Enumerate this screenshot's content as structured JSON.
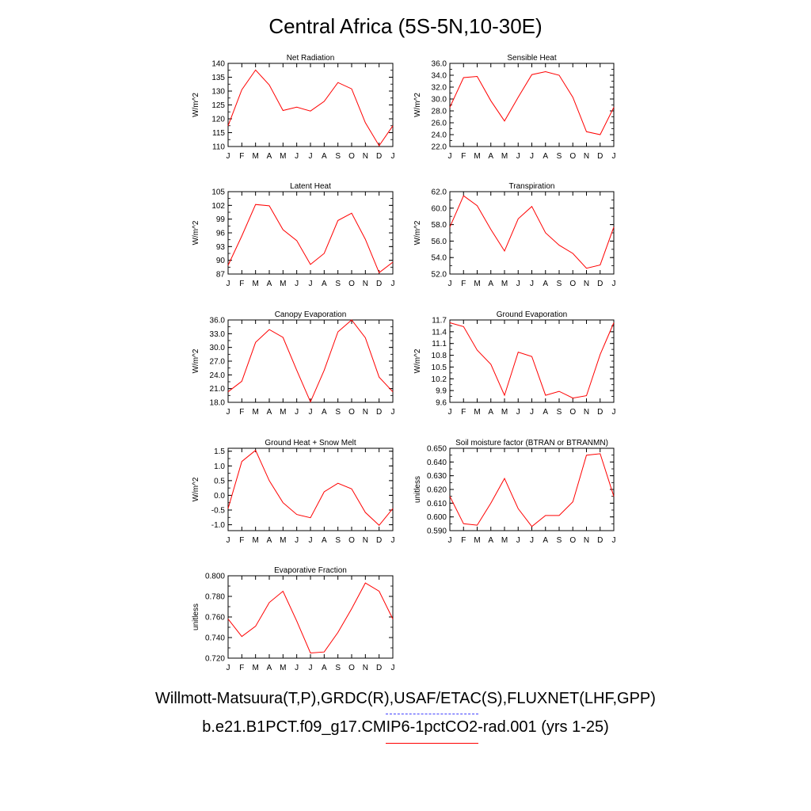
{
  "title": "Central Africa (5S-5N,10-30E)",
  "legend": {
    "observations": "Willmott-Matsuura(T,P),GRDC(R),USAF/ETAC(S),FLUXNET(LHF,GPP)",
    "model": "b.e21.B1PCT.f09_g17.CMIP6-1pctCO2-rad.001 (yrs 1-25)",
    "observations_color": "#4040ff",
    "model_color": "#ff0000"
  },
  "chart_data": [
    {
      "type": "line",
      "title": "Net Radiation",
      "ylabel": "W/m^2",
      "x": [
        "J",
        "F",
        "M",
        "A",
        "M",
        "J",
        "J",
        "A",
        "S",
        "O",
        "N",
        "D",
        "J"
      ],
      "ylim": [
        110,
        140
      ],
      "yticks": [
        "110",
        "115",
        "120",
        "125",
        "130",
        "135",
        "140"
      ],
      "series": [
        {
          "values": [
            117.5,
            130.5,
            137.6,
            132.2,
            123.0,
            124.2,
            122.8,
            126.3,
            133.1,
            130.8,
            118.6,
            110.3,
            117.5
          ],
          "color": "#ff0000"
        }
      ]
    },
    {
      "type": "line",
      "title": "Sensible Heat",
      "ylabel": "W/m^2",
      "x": [
        "J",
        "F",
        "M",
        "A",
        "M",
        "J",
        "J",
        "A",
        "S",
        "O",
        "N",
        "D",
        "J"
      ],
      "ylim": [
        22.0,
        36.0
      ],
      "yticks": [
        "22.0",
        "24.0",
        "26.0",
        "28.0",
        "30.0",
        "32.0",
        "34.0",
        "36.0"
      ],
      "series": [
        {
          "values": [
            28.6,
            33.6,
            33.8,
            29.7,
            26.3,
            30.3,
            34.1,
            34.6,
            34.0,
            30.3,
            24.5,
            24.0,
            28.6
          ],
          "color": "#ff0000"
        }
      ]
    },
    {
      "type": "line",
      "title": "Latent Heat",
      "ylabel": "W/m^2",
      "x": [
        "J",
        "F",
        "M",
        "A",
        "M",
        "J",
        "J",
        "A",
        "S",
        "O",
        "N",
        "D",
        "J"
      ],
      "ylim": [
        87,
        105
      ],
      "yticks": [
        "87",
        "90",
        "93",
        "96",
        "99",
        "102",
        "105"
      ],
      "series": [
        {
          "values": [
            88.9,
            95.3,
            102.2,
            101.9,
            96.7,
            94.3,
            89.1,
            91.5,
            98.7,
            100.3,
            94.6,
            87.3,
            89.6
          ],
          "color": "#ff0000"
        }
      ]
    },
    {
      "type": "line",
      "title": "Transpiration",
      "ylabel": "W/m^2",
      "x": [
        "J",
        "F",
        "M",
        "A",
        "M",
        "J",
        "J",
        "A",
        "S",
        "O",
        "N",
        "D",
        "J"
      ],
      "ylim": [
        52.0,
        62.0
      ],
      "yticks": [
        "52.0",
        "54.0",
        "56.0",
        "58.0",
        "60.0",
        "62.0"
      ],
      "series": [
        {
          "values": [
            57.7,
            61.5,
            60.3,
            57.4,
            54.8,
            58.7,
            60.2,
            57.0,
            55.5,
            54.5,
            52.7,
            53.1,
            57.7
          ],
          "color": "#ff0000"
        }
      ]
    },
    {
      "type": "line",
      "title": "Canopy Evaporation",
      "ylabel": "W/m^2",
      "x": [
        "J",
        "F",
        "M",
        "A",
        "M",
        "J",
        "J",
        "A",
        "S",
        "O",
        "N",
        "D",
        "J"
      ],
      "ylim": [
        18.0,
        36.0
      ],
      "yticks": [
        "18.0",
        "21.0",
        "24.0",
        "27.0",
        "30.0",
        "33.0",
        "36.0"
      ],
      "series": [
        {
          "values": [
            20.3,
            22.6,
            31.1,
            33.9,
            32.2,
            25.0,
            18.1,
            25.0,
            33.4,
            36.0,
            32.1,
            23.5,
            20.3
          ],
          "color": "#ff0000"
        }
      ]
    },
    {
      "type": "line",
      "title": "Ground Evaporation",
      "ylabel": "W/m^2",
      "x": [
        "J",
        "F",
        "M",
        "A",
        "M",
        "J",
        "J",
        "A",
        "S",
        "O",
        "N",
        "D",
        "J"
      ],
      "ylim": [
        9.6,
        11.7
      ],
      "yticks": [
        "9.6",
        "9.9",
        "10.2",
        "10.5",
        "10.8",
        "11.1",
        "11.4",
        "11.7"
      ],
      "series": [
        {
          "values": [
            11.63,
            11.53,
            10.93,
            10.57,
            9.78,
            10.88,
            10.77,
            9.78,
            9.88,
            9.71,
            9.77,
            10.82,
            11.63
          ],
          "color": "#ff0000"
        }
      ]
    },
    {
      "type": "line",
      "title": "Ground Heat + Snow Melt",
      "ylabel": "W/m^2",
      "x": [
        "J",
        "F",
        "M",
        "A",
        "M",
        "J",
        "J",
        "A",
        "S",
        "O",
        "N",
        "D",
        "J"
      ],
      "ylim": [
        -1.2,
        1.6
      ],
      "yticks": [
        "-1.0",
        "-0.5",
        "0.0",
        "0.5",
        "1.0",
        "1.5"
      ],
      "series": [
        {
          "values": [
            -0.45,
            1.15,
            1.53,
            0.5,
            -0.25,
            -0.65,
            -0.76,
            0.12,
            0.41,
            0.22,
            -0.58,
            -1.02,
            -0.45
          ],
          "color": "#ff0000"
        }
      ]
    },
    {
      "type": "line",
      "title": "Soil moisture factor (BTRAN or BTRANMN)",
      "ylabel": "unitless",
      "x": [
        "J",
        "F",
        "M",
        "A",
        "M",
        "J",
        "J",
        "A",
        "S",
        "O",
        "N",
        "D",
        "J"
      ],
      "ylim": [
        0.59,
        0.65
      ],
      "yticks": [
        "0.590",
        "0.600",
        "0.610",
        "0.620",
        "0.630",
        "0.640",
        "0.650"
      ],
      "series": [
        {
          "values": [
            0.615,
            0.595,
            0.594,
            0.61,
            0.628,
            0.606,
            0.593,
            0.601,
            0.601,
            0.611,
            0.645,
            0.646,
            0.615
          ],
          "color": "#ff0000"
        }
      ]
    },
    {
      "type": "line",
      "title": "Evaporative Fraction",
      "ylabel": "unitless",
      "x": [
        "J",
        "F",
        "M",
        "A",
        "M",
        "J",
        "J",
        "A",
        "S",
        "O",
        "N",
        "D",
        "J"
      ],
      "ylim": [
        0.72,
        0.8
      ],
      "yticks": [
        "0.720",
        "0.740",
        "0.760",
        "0.780",
        "0.800"
      ],
      "series": [
        {
          "values": [
            0.758,
            0.741,
            0.751,
            0.774,
            0.785,
            0.756,
            0.725,
            0.726,
            0.745,
            0.768,
            0.793,
            0.785,
            0.758
          ],
          "color": "#ff0000"
        }
      ]
    }
  ]
}
